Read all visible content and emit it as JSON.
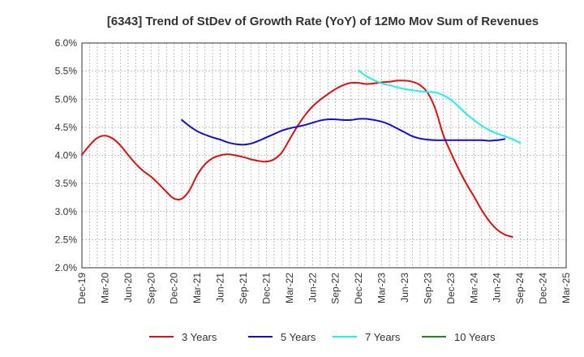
{
  "chart_data": {
    "type": "line",
    "title": "[6343]  Trend of StDev of Growth Rate (YoY) of 12Mo Mov Sum of Revenues",
    "xlabel": "",
    "ylabel": "",
    "ylim": [
      0.02,
      0.06
    ],
    "y_ticks": [
      "2.0%",
      "2.5%",
      "3.0%",
      "3.5%",
      "4.0%",
      "4.5%",
      "5.0%",
      "5.5%",
      "6.0%"
    ],
    "x_tick_labels": [
      "Dec-19",
      "Mar-20",
      "Jun-20",
      "Sep-20",
      "Dec-20",
      "Mar-21",
      "Jun-21",
      "Sep-21",
      "Dec-21",
      "Mar-22",
      "Jun-22",
      "Sep-22",
      "Dec-22",
      "Mar-23",
      "Jun-23",
      "Sep-23",
      "Dec-23",
      "Mar-24",
      "Jun-24",
      "Sep-24",
      "Dec-24",
      "Mar-25"
    ],
    "grid": true,
    "legend_position": "bottom",
    "series": [
      {
        "name": "3 Years",
        "color": "#dd1111",
        "start_index": 0,
        "values": [
          0.0401,
          0.0418,
          0.0431,
          0.0435,
          0.043,
          0.0418,
          0.0401,
          0.0385,
          0.0372,
          0.0362,
          0.0349,
          0.0335,
          0.0323,
          0.0323,
          0.0338,
          0.0365,
          0.0384,
          0.0395,
          0.04,
          0.0402,
          0.04,
          0.0397,
          0.0393,
          0.039,
          0.0389,
          0.0393,
          0.0405,
          0.0428,
          0.0451,
          0.0471,
          0.0487,
          0.0499,
          0.0509,
          0.0518,
          0.0525,
          0.0529,
          0.0529,
          0.0527,
          0.0528,
          0.053,
          0.0531,
          0.0533,
          0.0533,
          0.0531,
          0.0525,
          0.0511,
          0.0482,
          0.0437,
          0.0405,
          0.0376,
          0.035,
          0.0327,
          0.0303,
          0.0283,
          0.0268,
          0.0259,
          0.0255
        ]
      },
      {
        "name": "5 Years",
        "color": "#1111cc",
        "start_index": 13,
        "values": [
          0.0463,
          0.0452,
          0.0443,
          0.0437,
          0.0432,
          0.0428,
          0.0423,
          0.042,
          0.0419,
          0.0421,
          0.0426,
          0.0432,
          0.0438,
          0.0444,
          0.0448,
          0.0451,
          0.0454,
          0.0458,
          0.0462,
          0.0464,
          0.0464,
          0.0463,
          0.0463,
          0.0465,
          0.0465,
          0.0463,
          0.046,
          0.0455,
          0.0448,
          0.0441,
          0.0434,
          0.043,
          0.0428,
          0.0427,
          0.0427,
          0.0427,
          0.0427,
          0.0427,
          0.0427,
          0.0427,
          0.0426,
          0.0427,
          0.0429
        ]
      },
      {
        "name": "7 Years",
        "color": "#22eeee",
        "start_index": 36,
        "values": [
          0.0551,
          0.0541,
          0.0534,
          0.0528,
          0.0525,
          0.0521,
          0.0518,
          0.0516,
          0.0514,
          0.0513,
          0.0512,
          0.0507,
          0.0499,
          0.0487,
          0.0474,
          0.0463,
          0.0453,
          0.0445,
          0.0439,
          0.0434,
          0.0429,
          0.0422
        ]
      },
      {
        "name": "10 Years",
        "color": "#228822",
        "start_index": 0,
        "values": []
      }
    ]
  }
}
